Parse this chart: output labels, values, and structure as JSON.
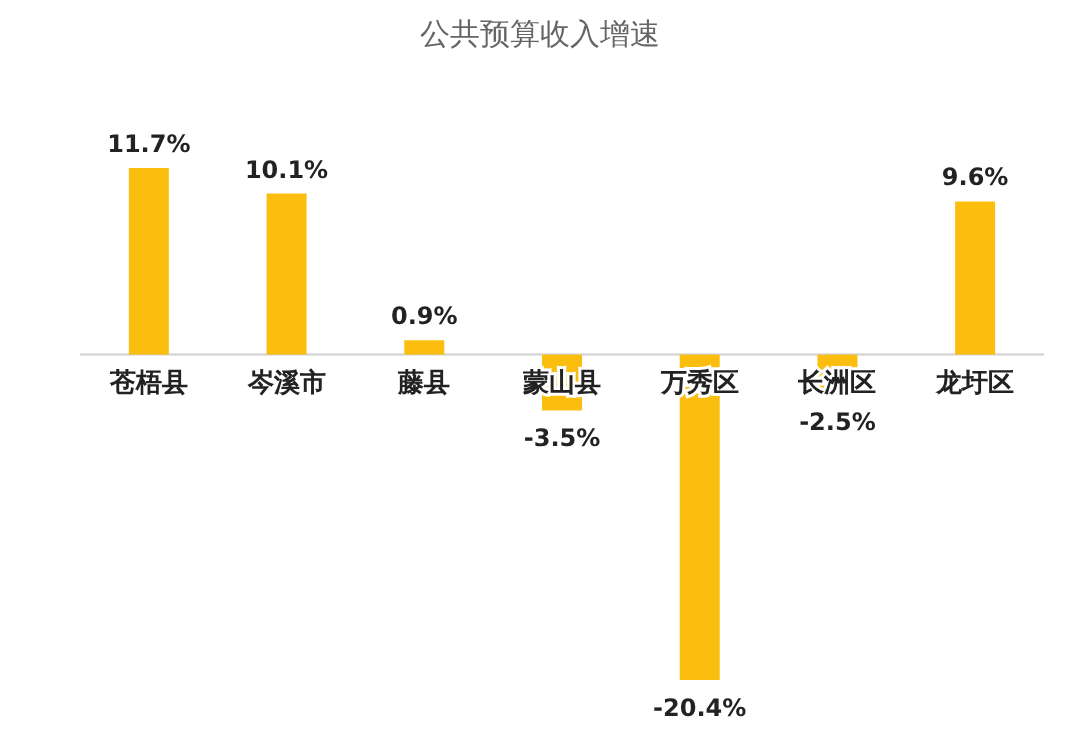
{
  "chart_data": {
    "type": "bar",
    "title": "公共预算收入增速",
    "categories": [
      "苍梧县",
      "岑溪市",
      "藤县",
      "蒙山县",
      "万秀区",
      "长洲区",
      "龙圩区"
    ],
    "values": [
      11.7,
      10.1,
      0.9,
      -3.5,
      -20.4,
      -2.5,
      9.6
    ],
    "value_labels": [
      "11.7%",
      "10.1%",
      "0.9%",
      "-3.5%",
      "-20.4%",
      "-2.5%",
      "9.6%"
    ],
    "color": "#fbbe0e"
  }
}
